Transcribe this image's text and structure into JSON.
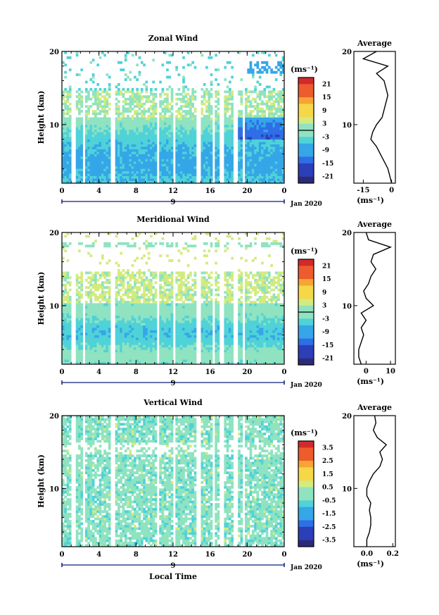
{
  "figure": {
    "xlabel": "Local Time",
    "date_label": "Jan 2020",
    "day_label": "9",
    "ylabel": "Height (km)",
    "avg_title": "Average",
    "unit": "(ms⁻¹)"
  },
  "chart_data": [
    {
      "type": "heatmap",
      "title": "Zonal Wind",
      "xlabel": "Local Time",
      "ylabel": "Height (km)",
      "x_ticks": [
        "0",
        "4",
        "8",
        "12",
        "16",
        "20",
        "0"
      ],
      "y_ticks": [
        "20",
        "10"
      ],
      "xlim": [
        0,
        24
      ],
      "ylim": [
        2,
        20
      ],
      "colorbar": {
        "label": "(ms⁻¹)",
        "ticks": [
          "21",
          "15",
          "9",
          "3",
          "-3",
          "-9",
          "-15",
          "-21"
        ],
        "range": [
          -24,
          24
        ]
      },
      "profile": {
        "title": "Average",
        "xlabel": "(ms⁻¹)",
        "x_ticks": [
          "-15",
          "0"
        ],
        "xlim": [
          -20,
          2
        ],
        "heights": [
          2,
          3,
          4,
          5,
          6,
          7,
          8,
          9,
          10,
          11,
          12,
          13,
          14,
          15,
          16,
          17,
          18,
          19,
          20
        ],
        "values": [
          0,
          -1,
          -2,
          -4,
          -6,
          -8,
          -11,
          -10,
          -8,
          -5,
          -4,
          -3,
          -2,
          -3,
          -4,
          -8,
          -2,
          -15,
          -8
        ]
      }
    },
    {
      "type": "heatmap",
      "title": "Meridional Wind",
      "xlabel": "Local Time",
      "ylabel": "Height (km)",
      "x_ticks": [
        "0",
        "4",
        "8",
        "12",
        "16",
        "20",
        "0"
      ],
      "y_ticks": [
        "20",
        "10"
      ],
      "xlim": [
        0,
        24
      ],
      "ylim": [
        2,
        20
      ],
      "colorbar": {
        "label": "(ms⁻¹)",
        "ticks": [
          "21",
          "15",
          "9",
          "3",
          "-3",
          "-9",
          "-15",
          "-21"
        ],
        "range": [
          -24,
          24
        ]
      },
      "profile": {
        "title": "Average",
        "xlabel": "(ms⁻¹)",
        "x_ticks": [
          "0",
          "10"
        ],
        "xlim": [
          -5,
          12
        ],
        "heights": [
          2,
          3,
          4,
          5,
          6,
          7,
          8,
          9,
          10,
          11,
          12,
          13,
          14,
          15,
          16,
          17,
          18,
          19,
          20
        ],
        "values": [
          -2,
          -3,
          -3,
          -2,
          -1,
          -2,
          0,
          -2,
          3,
          0,
          -1,
          1,
          2,
          4,
          2,
          3,
          10,
          1,
          0
        ]
      }
    },
    {
      "type": "heatmap",
      "title": "Vertical Wind",
      "xlabel": "Local Time",
      "ylabel": "Height (km)",
      "x_ticks": [
        "0",
        "4",
        "8",
        "12",
        "16",
        "20",
        "0"
      ],
      "y_ticks": [
        "20",
        "10"
      ],
      "xlim": [
        0,
        24
      ],
      "ylim": [
        2,
        20
      ],
      "colorbar": {
        "label": "(ms⁻¹)",
        "ticks": [
          "3.5",
          "2.5",
          "1.5",
          "0.5",
          "-0.5",
          "-1.5",
          "-2.5",
          "-3.5"
        ],
        "range": [
          -4,
          4
        ]
      },
      "profile": {
        "title": "Average",
        "xlabel": "(ms⁻¹)",
        "x_ticks": [
          "0.0",
          "0.2"
        ],
        "xlim": [
          -0.1,
          0.22
        ],
        "heights": [
          2,
          3,
          4,
          5,
          6,
          7,
          8,
          9,
          10,
          11,
          12,
          13,
          14,
          15,
          16,
          17,
          18,
          19,
          20
        ],
        "values": [
          0.0,
          0.0,
          0.02,
          0.03,
          0.03,
          0.02,
          0.03,
          0.0,
          0.0,
          0.02,
          0.05,
          0.1,
          0.12,
          0.1,
          0.15,
          0.08,
          0.05,
          0.07,
          0.06
        ]
      }
    }
  ]
}
